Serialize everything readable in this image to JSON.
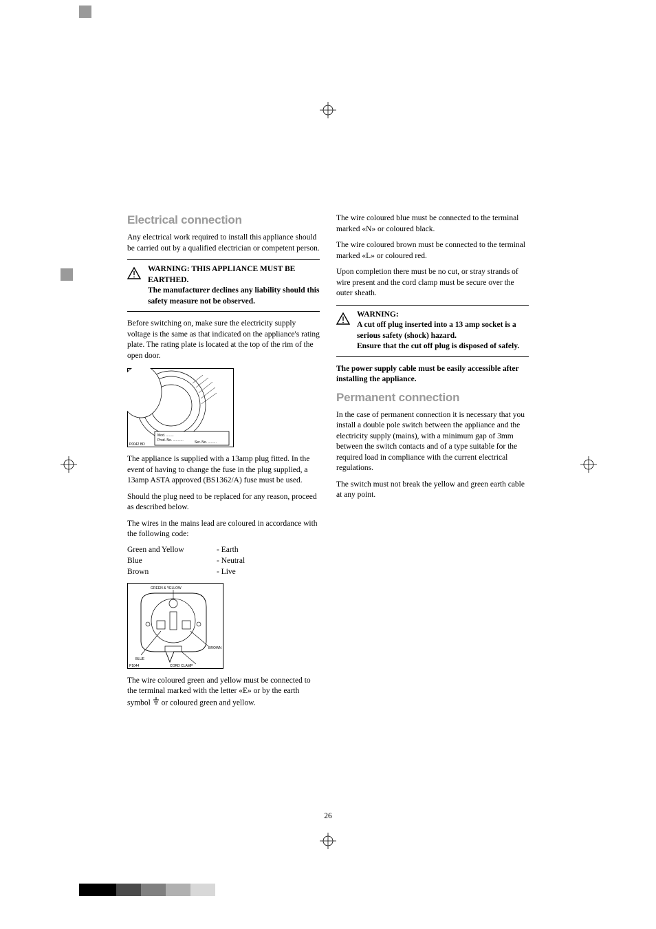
{
  "page_number": "26",
  "left": {
    "heading": "Electrical connection",
    "intro": "Any electrical work required to install this appliance should be carried out by a qualified electrician or competent person.",
    "warning1_line1": "WARNING: THIS APPLIANCE MUST BE EARTHED.",
    "warning1_line2": "The manufacturer declines any liability should this safety measure not be observed.",
    "p2": "Before switching on, make sure the electricity supply voltage is the same as that indicated on the appliance's rating plate. The rating plate is located at the top of the rim of the open door.",
    "fig1_labels": {
      "mod": "Mod. ........",
      "prod": "Prod. No. ...........",
      "ser": "Ser. No. .........",
      "code": "P0042 BD"
    },
    "p3": "The appliance is supplied with a 13amp plug fitted. In the event of having to change the fuse in the plug supplied, a 13amp ASTA approved (BS1362/A) fuse must be used.",
    "p4": "Should the plug need to be replaced for any reason, proceed as described below.",
    "p5": "The wires in the mains lead are coloured in accordance with the following code:",
    "wires": [
      {
        "name": "Green and Yellow",
        "role": "- Earth"
      },
      {
        "name": "Blue",
        "role": "- Neutral"
      },
      {
        "name": "Brown",
        "role": "- Live"
      }
    ],
    "fig2_labels": {
      "gy": "GREEN & YELLOW",
      "blue": "BLUE",
      "brown": "BROWN",
      "clamp": "CORD CLAMP",
      "code": "P1044"
    },
    "p6a": "The wire coloured green and yellow must be connected to the terminal marked with the letter «E» or by the earth symbol ",
    "p6b": " or coloured green and yellow."
  },
  "right": {
    "p1": "The wire coloured blue must be connected to the terminal marked «N» or coloured black.",
    "p2": "The wire coloured brown must be connected to the terminal marked «L» or coloured red.",
    "p3": "Upon completion there must be no cut, or stray strands of wire present and the cord clamp must be secure over the outer sheath.",
    "warn_head": "WARNING:",
    "warn_l1": "A cut off plug inserted into a 13 amp socket  is a serious safety (shock) hazard.",
    "warn_l2": "Ensure that the cut off plug is disposed of safely.",
    "p4": "The power supply cable must be easily accessible after installing the appliance.",
    "heading2": "Permanent connection",
    "p5": "In the case of permanent connection it is necessary that you install a double pole switch between the appliance and the electricity supply (mains), with a minimum gap of 3mm between the switch contacts and of a type suitable for the required load in compliance with the current electrical regulations.",
    "p6": "The switch must not break the yellow and green earth cable at any point."
  },
  "colorbar": [
    "#000000",
    "#000000",
    "#000000",
    "#4a4a4a",
    "#4a4a4a",
    "#808080",
    "#808080",
    "#b0b0b0",
    "#b0b0b0",
    "#d8d8d8",
    "#d8d8d8"
  ]
}
